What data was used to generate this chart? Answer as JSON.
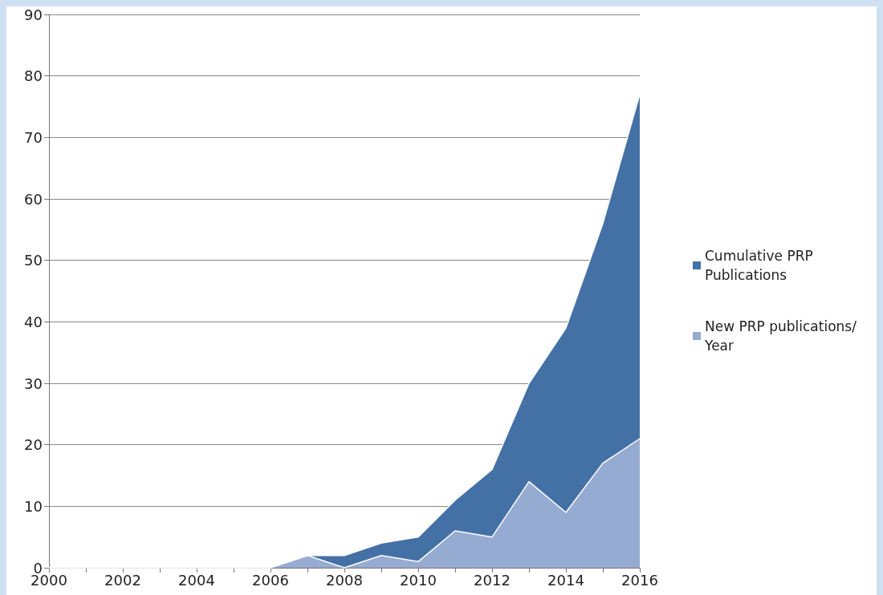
{
  "chart_data": {
    "type": "area",
    "x": [
      2000,
      2001,
      2002,
      2003,
      2004,
      2005,
      2006,
      2007,
      2008,
      2009,
      2010,
      2011,
      2012,
      2013,
      2014,
      2015,
      2016
    ],
    "series": [
      {
        "name": "Cumulative PRP Publications",
        "color": "#4471a5",
        "values": [
          0,
          0,
          0,
          0,
          0,
          0,
          0,
          2,
          2,
          4,
          5,
          11,
          16,
          30,
          39,
          56,
          77
        ]
      },
      {
        "name": "New PRP publications/ Year",
        "color": "#96abd1",
        "values": [
          0,
          0,
          0,
          0,
          0,
          0,
          0,
          2,
          0,
          2,
          1,
          6,
          5,
          14,
          9,
          17,
          21
        ]
      }
    ],
    "xlim": [
      2000,
      2016
    ],
    "xticks": [
      2000,
      {
        "value": 2001,
        "label": null
      },
      2002,
      {
        "value": 2003,
        "label": null
      },
      2004,
      {
        "value": 2005,
        "label": null
      },
      2006,
      {
        "value": 2007,
        "label": null
      },
      2008,
      {
        "value": 2009,
        "label": null
      },
      2010,
      {
        "value": 2011,
        "label": null
      },
      2012,
      {
        "value": 2013,
        "label": null
      },
      2014,
      {
        "value": 2015,
        "label": null
      },
      2016
    ],
    "ylim": [
      0,
      90
    ],
    "yticks": [
      0,
      10,
      20,
      30,
      40,
      50,
      60,
      70,
      80,
      90
    ],
    "grid": "y",
    "legend": "right"
  }
}
